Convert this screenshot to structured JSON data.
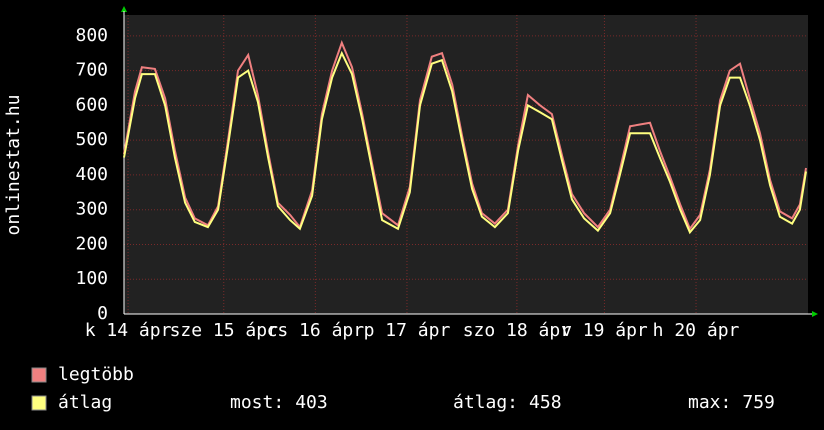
{
  "chart_data": {
    "type": "line",
    "y_label": "onlinestat.hu",
    "x": [
      0,
      2.7,
      4.4,
      7.6,
      10.1,
      12.5,
      15,
      17.4,
      20.6,
      23.1,
      25.5,
      28,
      30.5,
      32.9,
      35.4,
      37.8,
      40.8,
      43.2,
      46.2,
      48.6,
      51.1,
      53.5,
      56,
      58.5,
      60.9,
      63.4,
      67.3,
      70.2,
      72.7,
      75.6,
      78.1,
      80.6,
      83,
      85.5,
      87.9,
      91.1,
      94.3,
      96.8,
      99.2,
      102.2,
      105.1,
      107.6,
      110,
      113,
      116.4,
      119.4,
      121.8,
      124.3,
      126.7,
      129.2,
      131.6,
      134.1,
      136.6,
      139,
      141.5,
      143.9,
      146.4,
      148.8,
      151.3,
      153.7,
      156.2,
      158.7,
      161.1,
      164.1,
      166,
      167.5
    ],
    "series": [
      {
        "name": "legtöbb",
        "color": "#f08080",
        "values": [
          460,
          640,
          710,
          705,
          620,
          470,
          335,
          275,
          255,
          310,
          495,
          700,
          745,
          630,
          465,
          320,
          285,
          250,
          355,
          575,
          700,
          780,
          710,
          575,
          435,
          290,
          255,
          365,
          615,
          740,
          750,
          660,
          515,
          375,
          290,
          260,
          300,
          485,
          630,
          600,
          575,
          455,
          345,
          290,
          250,
          300,
          415,
          540,
          545,
          550,
          470,
          395,
          315,
          245,
          285,
          415,
          615,
          700,
          720,
          620,
          520,
          385,
          295,
          275,
          315,
          420
        ],
        "axis": "y"
      },
      {
        "name": "átlag",
        "color": "#ffff80",
        "values": [
          450,
          620,
          690,
          690,
          600,
          450,
          320,
          265,
          250,
          300,
          480,
          680,
          700,
          610,
          450,
          310,
          270,
          245,
          340,
          560,
          680,
          750,
          690,
          560,
          420,
          270,
          245,
          350,
          600,
          720,
          730,
          640,
          500,
          360,
          280,
          250,
          290,
          470,
          600,
          580,
          560,
          440,
          330,
          275,
          240,
          290,
          400,
          520,
          520,
          520,
          450,
          380,
          300,
          235,
          270,
          400,
          600,
          680,
          680,
          600,
          500,
          370,
          280,
          260,
          300,
          410
        ]
      }
    ],
    "xlim": [
      0,
      168
    ],
    "xticks": [
      {
        "value": 1,
        "label": "k 14 ápr"
      },
      {
        "value": 24.5,
        "label": "sze 15 ápr"
      },
      {
        "value": 47,
        "label": "cs 16 ápr"
      },
      {
        "value": 69.5,
        "label": "p 17 ápr"
      },
      {
        "value": 96.5,
        "label": "szo 18 ápr"
      },
      {
        "value": 118,
        "label": "v 19 ápr"
      },
      {
        "value": 140.5,
        "label": "h 20 ápr"
      }
    ],
    "ylim": [
      0,
      860
    ],
    "yticks": [
      0,
      100,
      200,
      300,
      400,
      500,
      600,
      700,
      800
    ],
    "grid": true,
    "stats": [
      {
        "label": "most:",
        "value": 403
      },
      {
        "label": "átlag:",
        "value": 458
      },
      {
        "label": "max:",
        "value": 759
      }
    ]
  }
}
